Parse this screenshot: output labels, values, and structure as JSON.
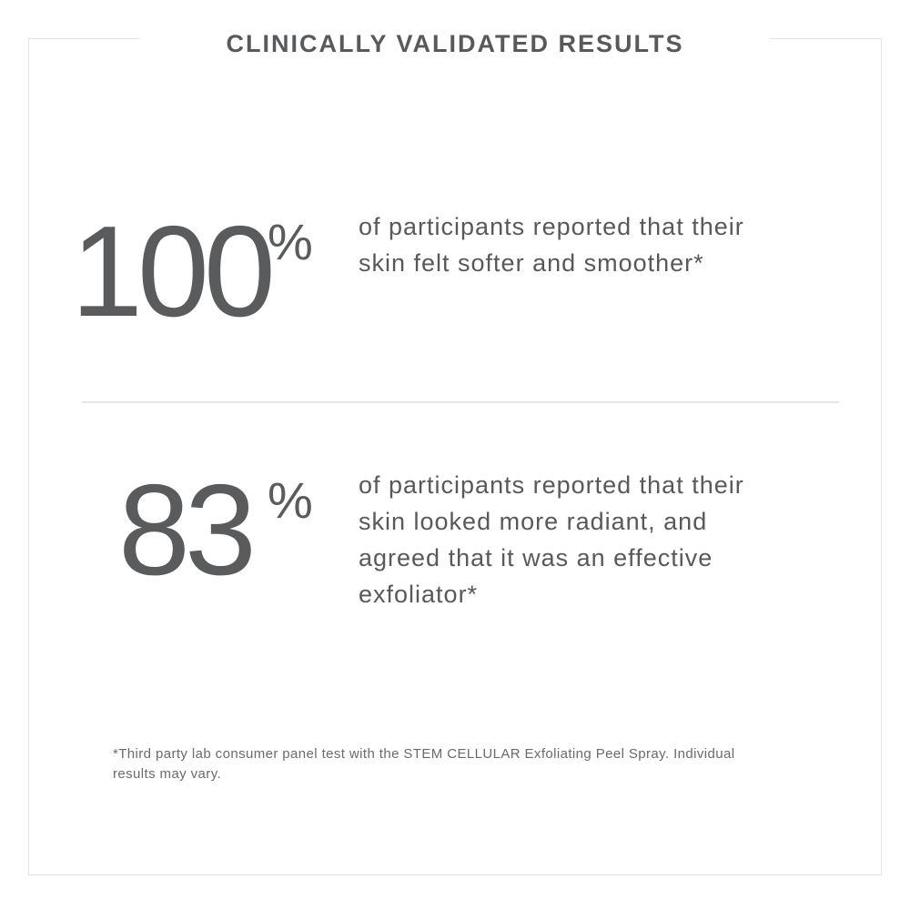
{
  "header": {
    "title": "CLINICALLY VALIDATED RESULTS"
  },
  "stats": [
    {
      "value": "100",
      "unit": "%",
      "description": "of participants reported that their skin felt softer and smoother*"
    },
    {
      "value": "83",
      "unit": "%",
      "description": "of participants reported that their skin looked more radiant, and agreed that it was an effective exfoliator*"
    }
  ],
  "footnote": "*Third party lab consumer panel test with the STEM CELLULAR Exfoliating Peel Spray. Individual results may vary.",
  "colors": {
    "text": "#58595b",
    "frame": "#e3e3e3",
    "background": "#ffffff"
  }
}
